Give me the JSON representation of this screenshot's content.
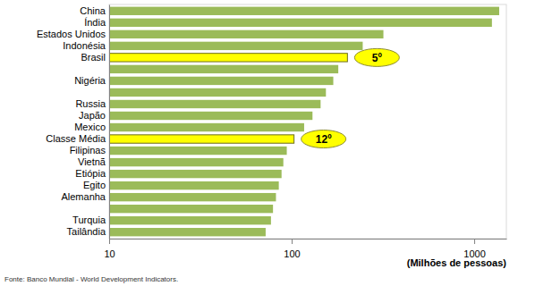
{
  "chart_data": {
    "type": "bar",
    "orientation": "horizontal",
    "log": "x",
    "grid": false,
    "categories": [
      "China",
      "Índia",
      "Estados Unidos",
      "Indonésia",
      "Brasil",
      null,
      "Nigéria",
      null,
      "Russia",
      "Japão",
      "Mexico",
      "Classe Média",
      "Filipinas",
      "Vietnã",
      "Etiópia",
      "Egito",
      "Alemanha",
      null,
      "Turquia",
      "Tailândia"
    ],
    "values": [
      1370,
      1250,
      318,
      245,
      202,
      180,
      169,
      154,
      144,
      130,
      117,
      103,
      94,
      90,
      88,
      85,
      82,
      79,
      77,
      72
    ],
    "colors": [
      "#9bbb59",
      "#9bbb59",
      "#9bbb59",
      "#9bbb59",
      "#ffff00",
      "#9bbb59",
      "#9bbb59",
      "#9bbb59",
      "#9bbb59",
      "#9bbb59",
      "#9bbb59",
      "#ffff00",
      "#9bbb59",
      "#9bbb59",
      "#9bbb59",
      "#9bbb59",
      "#9bbb59",
      "#9bbb59",
      "#9bbb59",
      "#9bbb59"
    ],
    "xlim": [
      10,
      1500
    ],
    "xticks": [
      10,
      100,
      1000
    ],
    "x_label": "(Milhões de pessoas)",
    "annotations": [
      {
        "text": "5º",
        "category": "Brasil"
      },
      {
        "text": "12º",
        "category": "Classe Média"
      }
    ],
    "source": "Fonte: Banco Mundial - World Development Indicators."
  }
}
